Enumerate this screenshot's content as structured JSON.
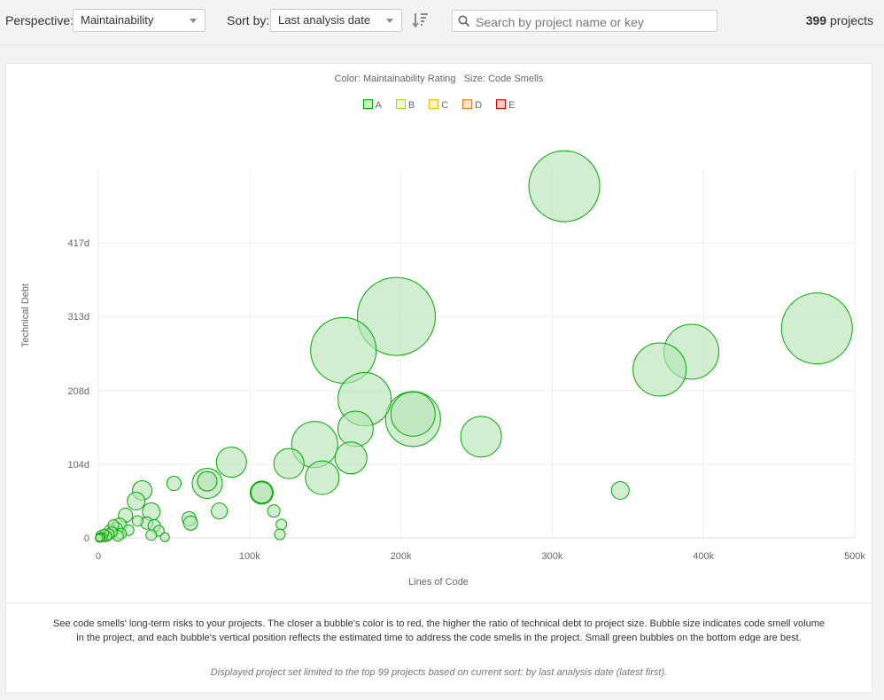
{
  "toolbar": {
    "perspective_label": "Perspective:",
    "perspective_value": "Maintainability",
    "sort_label": "Sort by:",
    "sort_value": "Last analysis date",
    "search_placeholder": "Search by project name or key",
    "project_count": "399",
    "project_count_suffix": "projects",
    "icons": [
      "chevron-down-icon",
      "sort-order-icon",
      "search-icon"
    ]
  },
  "chart_data": {
    "type": "scatter",
    "color_metric_label": "Color: Maintainability Rating",
    "size_metric_label": "Size: Code Smells",
    "legend": [
      {
        "label": "A",
        "color": "#00aa00"
      },
      {
        "label": "B",
        "color": "#b0d513"
      },
      {
        "label": "C",
        "color": "#eabe06"
      },
      {
        "label": "D",
        "color": "#ed7d20"
      },
      {
        "label": "E",
        "color": "#e00000"
      }
    ],
    "xlabel": "Lines of Code",
    "ylabel": "Technical Debt",
    "xlim": [
      0,
      500000
    ],
    "ylim": [
      0,
      521
    ],
    "x_ticks": [
      0,
      100000,
      200000,
      300000,
      400000,
      500000
    ],
    "x_tick_labels": [
      "0",
      "100k",
      "200k",
      "300k",
      "400k",
      "500k"
    ],
    "y_ticks": [
      0,
      104,
      208,
      313,
      417
    ],
    "y_tick_labels": [
      "0",
      "104d",
      "208d",
      "313d",
      "417d"
    ],
    "grid": true,
    "point_color": "#00aa00",
    "point_fill": "#b4e3b4",
    "points": [
      {
        "x": 308000,
        "y": 497,
        "size": 40
      },
      {
        "x": 197000,
        "y": 313,
        "size": 44
      },
      {
        "x": 162000,
        "y": 265,
        "size": 37
      },
      {
        "x": 176000,
        "y": 196,
        "size": 30
      },
      {
        "x": 208000,
        "y": 168,
        "size": 31
      },
      {
        "x": 208000,
        "y": 175,
        "size": 25
      },
      {
        "x": 253000,
        "y": 143,
        "size": 23
      },
      {
        "x": 170000,
        "y": 154,
        "size": 20
      },
      {
        "x": 143000,
        "y": 132,
        "size": 26
      },
      {
        "x": 167000,
        "y": 113,
        "size": 18
      },
      {
        "x": 148000,
        "y": 85,
        "size": 19
      },
      {
        "x": 126000,
        "y": 105,
        "size": 17
      },
      {
        "x": 88000,
        "y": 107,
        "size": 17
      },
      {
        "x": 475000,
        "y": 296,
        "size": 40
      },
      {
        "x": 392000,
        "y": 263,
        "size": 31
      },
      {
        "x": 371000,
        "y": 238,
        "size": 30
      },
      {
        "x": 345000,
        "y": 67,
        "size": 10
      },
      {
        "x": 72000,
        "y": 77,
        "size": 17
      },
      {
        "x": 72000,
        "y": 80,
        "size": 11
      },
      {
        "x": 108000,
        "y": 64,
        "size": 13
      },
      {
        "x": 108000,
        "y": 64,
        "size": 12
      },
      {
        "x": 50000,
        "y": 77,
        "size": 8
      },
      {
        "x": 29000,
        "y": 67,
        "size": 11
      },
      {
        "x": 25000,
        "y": 52,
        "size": 10
      },
      {
        "x": 80000,
        "y": 38,
        "size": 9
      },
      {
        "x": 35000,
        "y": 37,
        "size": 10
      },
      {
        "x": 18000,
        "y": 32,
        "size": 8
      },
      {
        "x": 60000,
        "y": 27,
        "size": 8
      },
      {
        "x": 61000,
        "y": 21,
        "size": 8
      },
      {
        "x": 116000,
        "y": 38,
        "size": 7
      },
      {
        "x": 121000,
        "y": 19,
        "size": 6
      },
      {
        "x": 120000,
        "y": 5,
        "size": 6
      },
      {
        "x": 32000,
        "y": 21,
        "size": 7
      },
      {
        "x": 37000,
        "y": 17,
        "size": 7
      },
      {
        "x": 26000,
        "y": 24,
        "size": 6
      },
      {
        "x": 40000,
        "y": 10,
        "size": 6
      },
      {
        "x": 44000,
        "y": 1,
        "size": 5
      },
      {
        "x": 35000,
        "y": 4,
        "size": 6
      },
      {
        "x": 20000,
        "y": 11,
        "size": 6
      },
      {
        "x": 14000,
        "y": 18,
        "size": 8
      },
      {
        "x": 12000,
        "y": 13,
        "size": 7
      },
      {
        "x": 10000,
        "y": 18,
        "size": 6
      },
      {
        "x": 15000,
        "y": 6,
        "size": 6
      },
      {
        "x": 13000,
        "y": 3,
        "size": 6
      },
      {
        "x": 9000,
        "y": 8,
        "size": 6
      },
      {
        "x": 8000,
        "y": 10,
        "size": 7
      },
      {
        "x": 7000,
        "y": 5,
        "size": 6
      },
      {
        "x": 6000,
        "y": 3,
        "size": 5
      },
      {
        "x": 5000,
        "y": 2,
        "size": 6
      },
      {
        "x": 4000,
        "y": 6,
        "size": 5
      },
      {
        "x": 3000,
        "y": 1,
        "size": 5
      },
      {
        "x": 2000,
        "y": 3,
        "size": 6
      },
      {
        "x": 1500,
        "y": 1,
        "size": 5
      },
      {
        "x": 1000,
        "y": 0,
        "size": 5
      },
      {
        "x": 500,
        "y": 0,
        "size": 4
      }
    ]
  },
  "description": "See code smells' long-term risks to your projects. The closer a bubble's color is to red, the higher the ratio of technical debt to project size. Bubble size indicates code smell volume in the project, and each bubble's vertical position reflects the estimated time to address the code smells in the project. Small green bubbles on the bottom edge are best.",
  "limit_note": "Displayed project set limited to the top 99 projects based on current sort: by last analysis date (latest first)."
}
